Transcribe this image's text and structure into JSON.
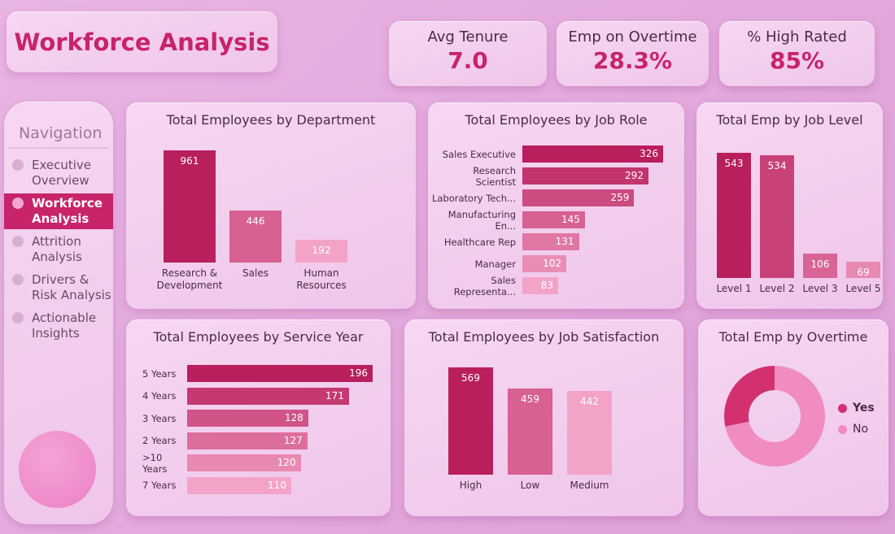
{
  "header": {
    "title": "Workforce Analysis"
  },
  "kpis": [
    {
      "label": "Avg Tenure",
      "value": "7.0"
    },
    {
      "label": "Emp on Overtime",
      "value": "28.3%"
    },
    {
      "label": "% High Rated",
      "value": "85%"
    }
  ],
  "navigation": {
    "heading": "Navigation",
    "items": [
      {
        "label": "Executive Overview",
        "active": false
      },
      {
        "label": "Workforce Analysis",
        "active": true
      },
      {
        "label": "Attrition Analysis",
        "active": false
      },
      {
        "label": "Drivers & Risk Analysis",
        "active": false
      },
      {
        "label": "Actionable Insights",
        "active": false
      }
    ]
  },
  "colors": {
    "accent": "#c7246a",
    "dark": "#b81f5c",
    "light": "#f4a3c8"
  },
  "chart_data": [
    {
      "id": "dept",
      "type": "bar",
      "orientation": "vertical",
      "title": "Total Employees by Department",
      "categories": [
        "Research & Development",
        "Sales",
        "Human Resources"
      ],
      "values": [
        961,
        446,
        192
      ]
    },
    {
      "id": "role",
      "type": "bar",
      "orientation": "horizontal",
      "title": "Total Employees by Job Role",
      "categories": [
        "Sales Executive",
        "Research Scientist",
        "Laboratory Tech...",
        "Manufacturing En...",
        "Healthcare Rep",
        "Manager",
        "Sales Representa..."
      ],
      "values": [
        326,
        292,
        259,
        145,
        131,
        102,
        83
      ]
    },
    {
      "id": "level",
      "type": "bar",
      "orientation": "vertical",
      "title": "Total Emp by Job Level",
      "categories": [
        "Level 1",
        "Level 2",
        "Level 3",
        "Level 5"
      ],
      "values": [
        543,
        534,
        106,
        69
      ]
    },
    {
      "id": "service",
      "type": "bar",
      "orientation": "horizontal",
      "title": "Total Employees by Service Year",
      "categories": [
        "5 Years",
        "4 Years",
        "3 Years",
        "2 Years",
        ">10 Years",
        "7 Years"
      ],
      "values": [
        196,
        171,
        128,
        127,
        120,
        110
      ]
    },
    {
      "id": "satisfaction",
      "type": "bar",
      "orientation": "vertical",
      "title": "Total Employees by Job Satisfaction",
      "categories": [
        "High",
        "Low",
        "Medium"
      ],
      "values": [
        569,
        459,
        442
      ]
    },
    {
      "id": "overtime",
      "type": "pie",
      "donut": true,
      "title": "Total Emp by Overtime",
      "categories": [
        "Yes",
        "No"
      ],
      "values": [
        28.3,
        71.7
      ],
      "colors": [
        "#d2306e",
        "#f08cc0"
      ],
      "legend": "right"
    }
  ]
}
